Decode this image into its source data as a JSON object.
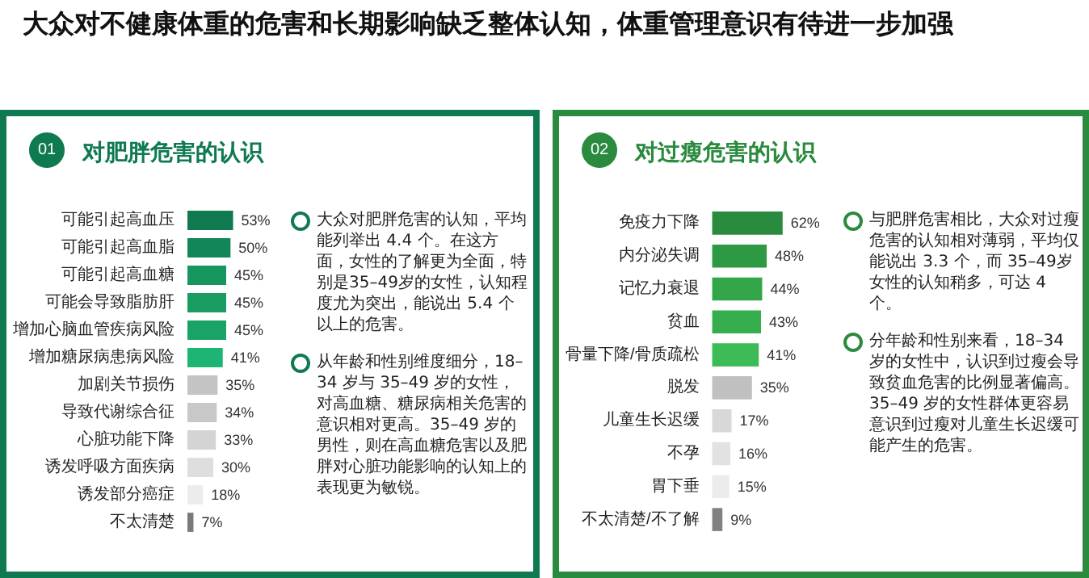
{
  "chart_data": [
    {
      "type": "other",
      "title": "大众对不健康体重的危害和长期影响缺乏整体认知，体重管理意识有待进一步加强"
    },
    {
      "type": "bar",
      "orientation": "horizontal",
      "title": "对肥胖危害的认识",
      "annotations": [
        "01"
      ],
      "categories": [
        "可能引起高血压",
        "可能引起高血脂",
        "可能引起高血糖",
        "可能会导致脂肪肝",
        "增加心脑血管疾病风险",
        "增加糖尿病患病风险",
        "加剧关节损伤",
        "导致代谢综合征",
        "心脏功能下降",
        "诱发呼吸方面疾病",
        "诱发部分癌症",
        "不太清楚"
      ],
      "values": [
        53,
        50,
        45,
        45,
        45,
        41,
        35,
        34,
        33,
        30,
        18,
        7
      ],
      "value_labels": [
        "53%",
        "50%",
        "45%",
        "45%",
        "45%",
        "41%",
        "35%",
        "34%",
        "33%",
        "30%",
        "18%",
        "7%"
      ],
      "colors": [
        "#0f7a50",
        "#138659",
        "#17955f",
        "#199c62",
        "#1aa366",
        "#1db574",
        "#c4c4c4",
        "#c8c8c8",
        "#d4d4d4",
        "#dedede",
        "#ececec",
        "#7a7a7a"
      ]
    },
    {
      "type": "other",
      "annotations": [
        "大众对肥胖危害的认知，平均能列举出 4.4 个。在这方面，女性的了解更为全面，特别是35–49岁的女性，认知程度尤为突出，能说出 5.4 个以上的危害。",
        "从年龄和性别维度细分，18–34 岁与 35–49 岁的女性，对高血糖、糖尿病相关危害的意识相对更高。35–49 岁的男性，则在高血糖危害以及肥胖对心脏功能影响的认知上的表现更为敏锐。"
      ]
    },
    {
      "type": "bar",
      "orientation": "horizontal",
      "title": "对过瘦危害的认识",
      "annotations": [
        "02"
      ],
      "categories": [
        "免疫力下降",
        "内分泌失调",
        "记忆力衰退",
        "贫血",
        "骨量下降/骨质疏松",
        "脱发",
        "儿童生长迟缓",
        "不孕",
        "胃下垂",
        "不太清楚/不了解"
      ],
      "values": [
        62,
        48,
        44,
        43,
        41,
        35,
        17,
        16,
        15,
        9
      ],
      "value_labels": [
        "62%",
        "48%",
        "44%",
        "43%",
        "41%",
        "35%",
        "17%",
        "16%",
        "15%",
        "9%"
      ],
      "colors": [
        "#2a8a3e",
        "#2e9943",
        "#33a649",
        "#37ae4e",
        "#3dbb57",
        "#c0c0c0",
        "#d8d8d8",
        "#e2e2e2",
        "#ececec",
        "#808080"
      ]
    },
    {
      "type": "other",
      "annotations": [
        "与肥胖危害相比，大众对过瘦危害的认知相对薄弱，平均仅能说出 3.3 个，而 35–49岁女性的认知稍多，可达 4 个。",
        "分年龄和性别来看，18–34 岁的女性中，认识到过瘦会导致贫血危害的比例显著偏高。35–49 岁的女性群体更容易意识到过瘦对儿童生长迟缓可能产生的危害。"
      ]
    }
  ]
}
